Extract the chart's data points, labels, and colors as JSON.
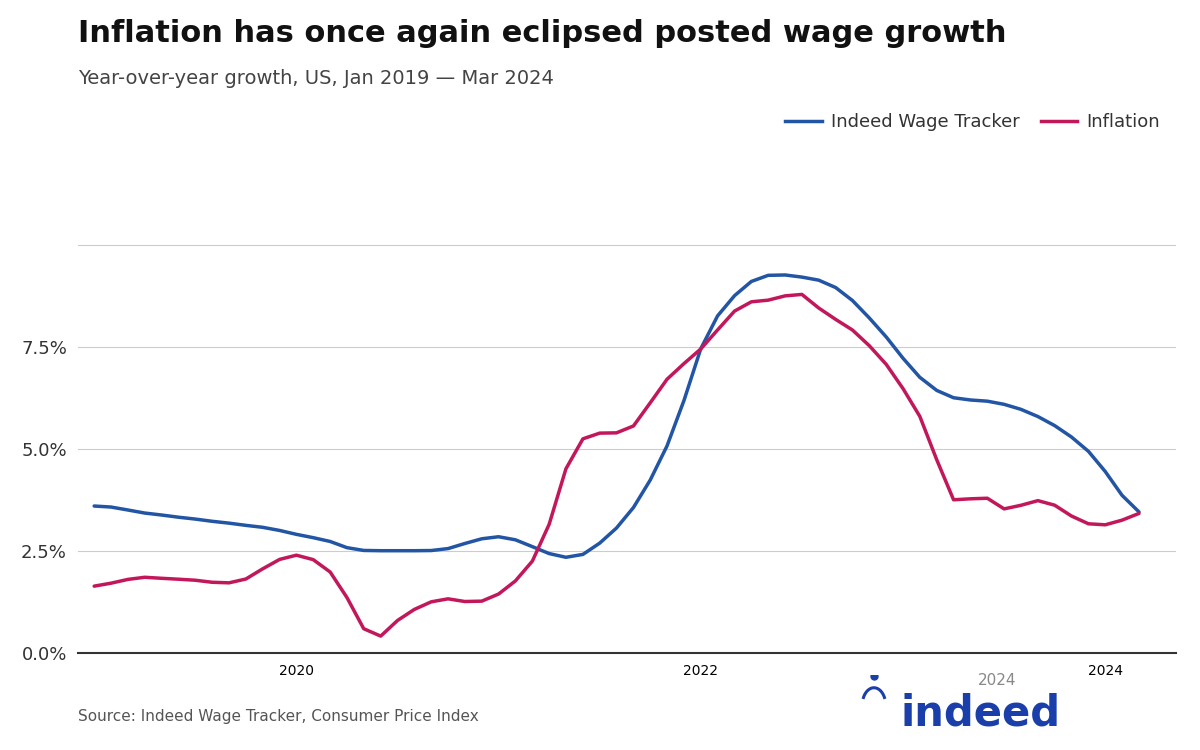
{
  "title": "Inflation has once again eclipsed posted wage growth",
  "subtitle": "Year-over-year growth, US, Jan 2019 — Mar 2024",
  "source": "Source: Indeed Wage Tracker, Consumer Price Index",
  "wage_color": "#2255A4",
  "inflation_color": "#C2185B",
  "background_color": "#ffffff",
  "ylim": [
    0.0,
    0.105
  ],
  "yticks": [
    0.0,
    0.025,
    0.05,
    0.075,
    0.1
  ],
  "ytick_labels": [
    "0.0%",
    "2.5%",
    "5.0%",
    "7.5%",
    ""
  ],
  "legend_wage": "Indeed Wage Tracker",
  "legend_inflation": "Inflation",
  "wage_x": [
    2019.0,
    2019.083,
    2019.167,
    2019.25,
    2019.333,
    2019.417,
    2019.5,
    2019.583,
    2019.667,
    2019.75,
    2019.833,
    2019.917,
    2020.0,
    2020.083,
    2020.167,
    2020.25,
    2020.333,
    2020.417,
    2020.5,
    2020.583,
    2020.667,
    2020.75,
    2020.833,
    2020.917,
    2021.0,
    2021.083,
    2021.167,
    2021.25,
    2021.333,
    2021.417,
    2021.5,
    2021.583,
    2021.667,
    2021.75,
    2021.833,
    2021.917,
    2022.0,
    2022.083,
    2022.167,
    2022.25,
    2022.333,
    2022.417,
    2022.5,
    2022.583,
    2022.667,
    2022.75,
    2022.833,
    2022.917,
    2023.0,
    2023.083,
    2023.167,
    2023.25,
    2023.333,
    2023.417,
    2023.5,
    2023.583,
    2023.667,
    2023.75,
    2023.833,
    2023.917,
    2024.0,
    2024.083,
    2024.167
  ],
  "wage_y": [
    0.036,
    0.036,
    0.035,
    0.034,
    0.034,
    0.033,
    0.033,
    0.032,
    0.032,
    0.031,
    0.031,
    0.03,
    0.029,
    0.028,
    0.028,
    0.025,
    0.025,
    0.025,
    0.025,
    0.025,
    0.025,
    0.025,
    0.027,
    0.028,
    0.029,
    0.028,
    0.026,
    0.024,
    0.023,
    0.023,
    0.027,
    0.03,
    0.035,
    0.042,
    0.05,
    0.06,
    0.078,
    0.083,
    0.088,
    0.092,
    0.093,
    0.093,
    0.092,
    0.092,
    0.09,
    0.087,
    0.082,
    0.078,
    0.072,
    0.067,
    0.064,
    0.062,
    0.062,
    0.062,
    0.061,
    0.06,
    0.058,
    0.056,
    0.053,
    0.05,
    0.045,
    0.038,
    0.033
  ],
  "inflation_x": [
    2019.0,
    2019.083,
    2019.167,
    2019.25,
    2019.333,
    2019.417,
    2019.5,
    2019.583,
    2019.667,
    2019.75,
    2019.833,
    2019.917,
    2020.0,
    2020.083,
    2020.167,
    2020.25,
    2020.333,
    2020.417,
    2020.5,
    2020.583,
    2020.667,
    2020.75,
    2020.833,
    2020.917,
    2021.0,
    2021.083,
    2021.167,
    2021.25,
    2021.333,
    2021.417,
    2021.5,
    2021.583,
    2021.667,
    2021.75,
    2021.833,
    2021.917,
    2022.0,
    2022.083,
    2022.167,
    2022.25,
    2022.333,
    2022.417,
    2022.5,
    2022.583,
    2022.667,
    2022.75,
    2022.833,
    2022.917,
    2023.0,
    2023.083,
    2023.167,
    2023.25,
    2023.333,
    2023.417,
    2023.5,
    2023.583,
    2023.667,
    2023.75,
    2023.833,
    2023.917,
    2024.0,
    2024.083,
    2024.167
  ],
  "inflation_y": [
    0.016,
    0.017,
    0.018,
    0.019,
    0.018,
    0.018,
    0.018,
    0.017,
    0.017,
    0.017,
    0.021,
    0.023,
    0.025,
    0.023,
    0.021,
    0.015,
    0.003,
    0.001,
    0.01,
    0.01,
    0.013,
    0.014,
    0.012,
    0.012,
    0.014,
    0.017,
    0.022,
    0.027,
    0.05,
    0.054,
    0.054,
    0.054,
    0.053,
    0.062,
    0.068,
    0.071,
    0.074,
    0.079,
    0.085,
    0.087,
    0.086,
    0.087,
    0.091,
    0.083,
    0.082,
    0.08,
    0.075,
    0.072,
    0.064,
    0.06,
    0.049,
    0.03,
    0.04,
    0.04,
    0.032,
    0.037,
    0.038,
    0.037,
    0.033,
    0.031,
    0.031,
    0.032,
    0.035
  ],
  "xlim": [
    2018.92,
    2024.35
  ],
  "xtick_positions": [
    2020.0,
    2022.0,
    2024.0
  ],
  "xtick_labels": [
    "2020",
    "2022",
    "2024"
  ]
}
